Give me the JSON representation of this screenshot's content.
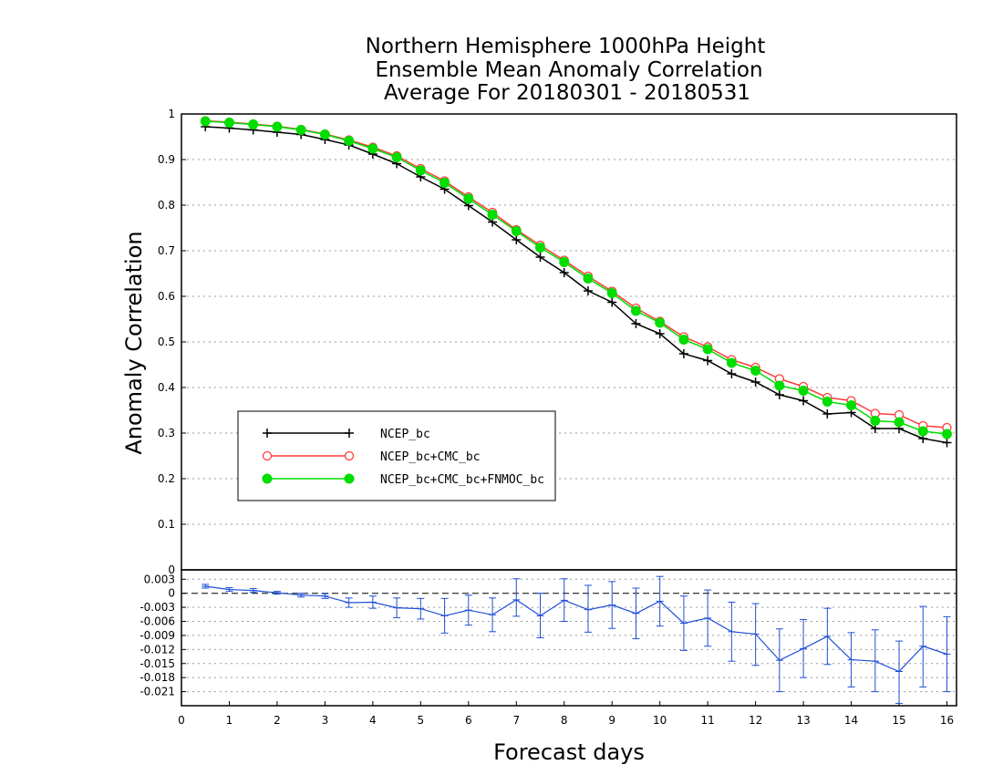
{
  "chart_data": [
    {
      "type": "line",
      "title": [
        "Northern Hemisphere 1000hPa Height",
        "Ensemble Mean Anomaly Correlation",
        "Average For 20180301 - 20180531"
      ],
      "ylabel": "Anomaly Correlation",
      "ylim": [
        0,
        1
      ],
      "yticks": [
        "0",
        "0.1",
        "0.2",
        "0.3",
        "0.4",
        "0.5",
        "0.6",
        "0.7",
        "0.8",
        "0.9",
        "1"
      ],
      "grid": true,
      "legend_position": "lower-left",
      "x": [
        0.5,
        1,
        1.5,
        2,
        2.5,
        3,
        3.5,
        4,
        4.5,
        5,
        5.5,
        6,
        6.5,
        7,
        7.5,
        8,
        8.5,
        9,
        9.5,
        10,
        10.5,
        11,
        11.5,
        12,
        12.5,
        13,
        13.5,
        14,
        14.5,
        15,
        15.5,
        16
      ],
      "series": [
        {
          "name": "NCEP_bc",
          "color": "#000000",
          "marker": "plus",
          "values": [
            0.972,
            0.969,
            0.965,
            0.96,
            0.955,
            0.944,
            0.932,
            0.912,
            0.891,
            0.862,
            0.835,
            0.799,
            0.763,
            0.724,
            0.686,
            0.652,
            0.612,
            0.587,
            0.54,
            0.518,
            0.474,
            0.459,
            0.43,
            0.412,
            0.384,
            0.371,
            0.342,
            0.345,
            0.31,
            0.31,
            0.288,
            0.279
          ]
        },
        {
          "name": "NCEP_bc+CMC_bc",
          "color": "#ff3b3b",
          "marker": "open-circle",
          "values": [
            0.985,
            0.982,
            0.978,
            0.973,
            0.966,
            0.956,
            0.943,
            0.927,
            0.908,
            0.88,
            0.853,
            0.818,
            0.784,
            0.746,
            0.712,
            0.679,
            0.644,
            0.611,
            0.574,
            0.545,
            0.511,
            0.489,
            0.461,
            0.444,
            0.419,
            0.402,
            0.378,
            0.371,
            0.343,
            0.34,
            0.316,
            0.312
          ]
        },
        {
          "name": "NCEP_bc+CMC_bc+FNMOC_bc",
          "color": "#00dd00",
          "marker": "filled-circle",
          "values": [
            0.984,
            0.981,
            0.977,
            0.972,
            0.965,
            0.955,
            0.941,
            0.924,
            0.905,
            0.876,
            0.849,
            0.814,
            0.779,
            0.743,
            0.707,
            0.675,
            0.639,
            0.607,
            0.568,
            0.542,
            0.505,
            0.484,
            0.454,
            0.437,
            0.404,
            0.393,
            0.369,
            0.361,
            0.327,
            0.324,
            0.304,
            0.298
          ]
        }
      ]
    },
    {
      "type": "line",
      "title": "",
      "ylabel": "",
      "xlabel": "Forecast days",
      "ylim": [
        -0.024,
        0.005
      ],
      "yticks": [
        "0.003",
        "0",
        "-0.003",
        "-0.006",
        "-0.009",
        "-0.012",
        "-0.015",
        "-0.018",
        "-0.021"
      ],
      "xticks": [
        "0",
        "1",
        "2",
        "3",
        "4",
        "5",
        "6",
        "7",
        "8",
        "9",
        "10",
        "11",
        "12",
        "13",
        "14",
        "15",
        "16"
      ],
      "xlim": [
        0,
        16.2
      ],
      "grid": true,
      "zero_line": true,
      "x": [
        0.5,
        1,
        1.5,
        2,
        2.5,
        3,
        3.5,
        4,
        4.5,
        5,
        5.5,
        6,
        6.5,
        7,
        7.5,
        8,
        8.5,
        9,
        9.5,
        10,
        10.5,
        11,
        11.5,
        12,
        12.5,
        13,
        13.5,
        14,
        14.5,
        15,
        15.5,
        16
      ],
      "series": [
        {
          "name": "",
          "color": "#1f4fd6",
          "values": [
            0.0015,
            0.0008,
            0.0006,
            0.0001,
            -0.0004,
            -0.0006,
            -0.002,
            -0.0019,
            -0.0031,
            -0.0033,
            -0.0048,
            -0.0036,
            -0.0046,
            -0.0014,
            -0.0048,
            -0.0015,
            -0.0035,
            -0.0025,
            -0.0043,
            -0.0017,
            -0.0064,
            -0.0053,
            -0.0082,
            -0.0087,
            -0.0143,
            -0.0118,
            -0.0092,
            -0.0142,
            -0.0145,
            -0.0167,
            -0.0113,
            -0.013
          ],
          "err_low": [
            0.0011,
            0.0004,
            0.0002,
            -0.0002,
            -0.0008,
            -0.0011,
            -0.003,
            -0.0032,
            -0.0052,
            -0.0055,
            -0.0085,
            -0.0068,
            -0.0082,
            -0.0049,
            -0.0095,
            -0.006,
            -0.0083,
            -0.0075,
            -0.0097,
            -0.007,
            -0.0122,
            -0.0113,
            -0.0145,
            -0.0154,
            -0.021,
            -0.018,
            -0.0152,
            -0.02,
            -0.021,
            -0.0235,
            -0.02,
            -0.021
          ],
          "err_high": [
            0.0019,
            0.0012,
            0.001,
            0.0004,
            0.0,
            -0.0001,
            -0.001,
            -0.0006,
            -0.001,
            -0.0011,
            -0.0011,
            -0.0004,
            -0.001,
            0.0031,
            0.0,
            0.0031,
            0.0017,
            0.0025,
            0.0011,
            0.0036,
            -0.0006,
            0.0007,
            -0.0019,
            -0.0022,
            -0.0076,
            -0.0056,
            -0.0032,
            -0.0084,
            -0.0078,
            -0.0102,
            -0.0028,
            -0.005
          ]
        }
      ]
    }
  ]
}
